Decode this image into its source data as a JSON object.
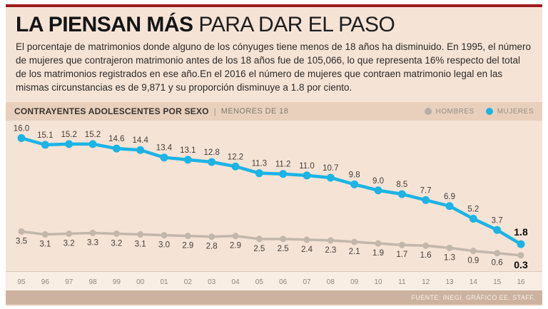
{
  "header": {
    "title_bold": "LA PIENSAN MÁS",
    "title_light": " PARA DAR EL PASO",
    "intro": "El porcentaje de matrimonios donde alguno de los cónyuges tiene menos de 18 años ha disminuido. En 1995, el número de mujeres que contrajeron matrimonio antes de los 18 años fue de 105,066, lo que representa 16% respecto del total de los matrimonios registrados en ese año.En el 2016 el número de mujeres que contraen matrimonio legal en las mismas circunstancias es de 9,871 y su proporción disminuye a 1.8 por ciento."
  },
  "chart_header": {
    "title": "CONTRAYENTES ADOLESCENTES POR SEXO",
    "separator": "|",
    "subtitle": "MENORES DE 18",
    "legend": [
      {
        "label": "HOMBRES",
        "color": "#b9ada2"
      },
      {
        "label": "MUJERES",
        "color": "#1cb4e4"
      }
    ]
  },
  "chart_data": {
    "type": "line",
    "title": "CONTRAYENTES ADOLESCENTES POR SEXO | MENORES DE 18",
    "categories": [
      "95",
      "96",
      "97",
      "98",
      "99",
      "00",
      "01",
      "02",
      "03",
      "04",
      "05",
      "06",
      "07",
      "08",
      "09",
      "10",
      "11",
      "12",
      "13",
      "14",
      "15",
      "16"
    ],
    "series": [
      {
        "name": "HOMBRES",
        "color": "#c3b7ab",
        "label_position": "below",
        "values": [
          3.5,
          3.1,
          3.2,
          3.3,
          3.2,
          3.1,
          3.0,
          2.9,
          2.8,
          2.9,
          2.5,
          2.5,
          2.4,
          2.3,
          2.1,
          1.9,
          1.7,
          1.6,
          1.3,
          0.9,
          0.6,
          0.3
        ]
      },
      {
        "name": "MUJERES",
        "color": "#1cb4e4",
        "label_position": "above",
        "values": [
          16.0,
          15.1,
          15.2,
          15.2,
          14.6,
          14.4,
          13.4,
          13.1,
          12.8,
          12.2,
          11.3,
          11.2,
          11.0,
          10.7,
          9.8,
          9.0,
          8.5,
          7.7,
          6.9,
          5.2,
          3.7,
          1.8
        ]
      }
    ],
    "ylim": [
      0,
      17
    ],
    "grid": false,
    "value_labels": true,
    "last_value_bold": true,
    "legend_position": "top-right",
    "xlabel": "",
    "ylabel": ""
  },
  "footer": {
    "source": "FUENTE: INEGI. GRÁFICO EE. STAFF."
  },
  "colors": {
    "background": "#f5e3d6",
    "accent_red": "#9f1c1f",
    "strip": "#e8d0bd",
    "axis_band": "#f9eee3",
    "footer": "#cdb39f",
    "mujeres": "#1cb4e4",
    "hombres": "#c3b7ab"
  }
}
